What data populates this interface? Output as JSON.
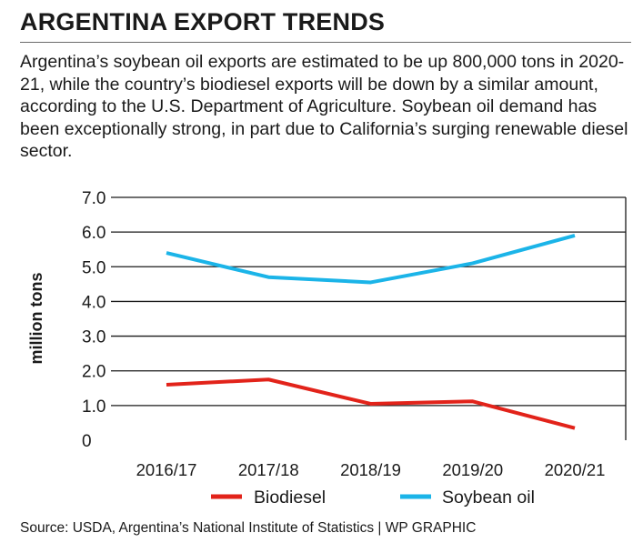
{
  "header": {
    "title": "ARGENTINA EXPORT TRENDS",
    "subtitle": "Argentina’s soybean oil exports are estimated to be up 800,000 tons in 2020-21, while the country’s biodiesel exports will be down by a similar amount, according to the U.S. Department of Agriculture. Soybean oil demand has been exceptionally strong, in part due to California’s surging renewable diesel sector."
  },
  "footer": {
    "source": "Source: USDA, Argentina’s National Institute of Statistics  | WP GRAPHIC"
  },
  "chart_data": {
    "type": "line",
    "title": "",
    "xlabel": "",
    "ylabel": "million tons",
    "ylim": [
      0,
      7.0
    ],
    "yticks": [
      "0",
      "1.0",
      "2.0",
      "3.0",
      "4.0",
      "5.0",
      "6.0",
      "7.0"
    ],
    "categories": [
      "2016/17",
      "2017/18",
      "2018/19",
      "2019/20",
      "2020/21"
    ],
    "grid": true,
    "legend_position": "bottom",
    "series": [
      {
        "name": "Biodiesel",
        "color": "#e2231a",
        "values": [
          1.6,
          1.75,
          1.05,
          1.12,
          0.35
        ]
      },
      {
        "name": "Soybean oil",
        "color": "#1bb4e8",
        "values": [
          5.4,
          4.7,
          4.55,
          5.1,
          5.9
        ]
      }
    ]
  }
}
